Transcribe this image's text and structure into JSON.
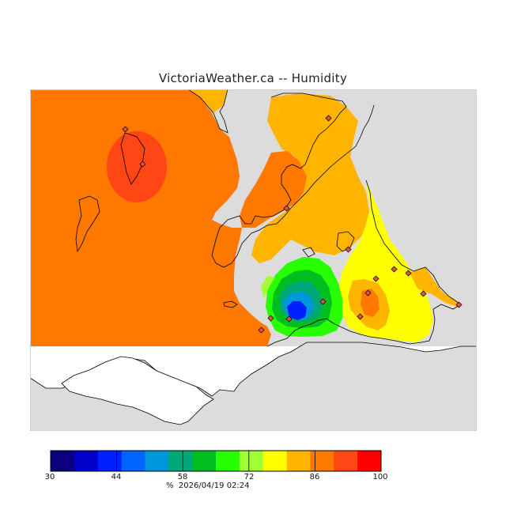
{
  "title": "VictoriaWeather.ca -- Humidity",
  "colorbar": {
    "colors": [
      "#0a0080",
      "#0000c8",
      "#0020ff",
      "#0064ff",
      "#0096dc",
      "#00a878",
      "#00be1e",
      "#28ff00",
      "#a0ff32",
      "#ffff00",
      "#ffb400",
      "#ff7800",
      "#ff4614",
      "#ff0000"
    ],
    "ticks": [
      {
        "label": "30",
        "value": 30
      },
      {
        "label": "44",
        "value": 44
      },
      {
        "label": "58",
        "value": 58
      },
      {
        "label": "72",
        "value": 72
      },
      {
        "label": "86",
        "value": 86
      },
      {
        "label": "100",
        "value": 100
      }
    ],
    "min": 30,
    "max": 100
  },
  "units": "%",
  "timestamp": "2026/04/19 02:24",
  "map_colors": {
    "land_gray": "#dcdcdc",
    "water_white": "#ffffff",
    "orange": "#ff7800",
    "orange_light": "#ffb400",
    "yellow": "#ffff00",
    "red_orange": "#ff4614",
    "green": "#28ff00",
    "blue": "#0020ff",
    "station_marker": "#e05050"
  }
}
